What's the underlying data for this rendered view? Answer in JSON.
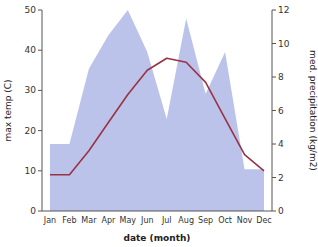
{
  "chart_data": {
    "type": "line",
    "categories": [
      "Jan",
      "Feb",
      "Mar",
      "Apr",
      "May",
      "Jun",
      "Jul",
      "Aug",
      "Sep",
      "Oct",
      "Nov",
      "Dec"
    ],
    "xlabel": "date (month)",
    "ylabel": "max temp (C)",
    "y2label": "med. precipitation (kg/m2)",
    "series": [
      {
        "type": "area",
        "axis": "y2",
        "color": "#b0b8e8",
        "values": [
          4.0,
          4.0,
          8.5,
          10.5,
          12.0,
          9.5,
          5.5,
          11.5,
          7.0,
          9.5,
          2.5,
          2.5
        ]
      },
      {
        "type": "line",
        "color": "#993344",
        "values": [
          9,
          9,
          15,
          22,
          29,
          35,
          38,
          37,
          32,
          23,
          14,
          10
        ]
      }
    ],
    "ylim": [
      0,
      50
    ],
    "yticks": [
      0,
      10,
      20,
      30,
      40,
      50
    ],
    "y2lim": [
      0,
      12
    ],
    "y2ticks": [
      0,
      2,
      4,
      6,
      8,
      10,
      12
    ],
    "grid": false
  }
}
